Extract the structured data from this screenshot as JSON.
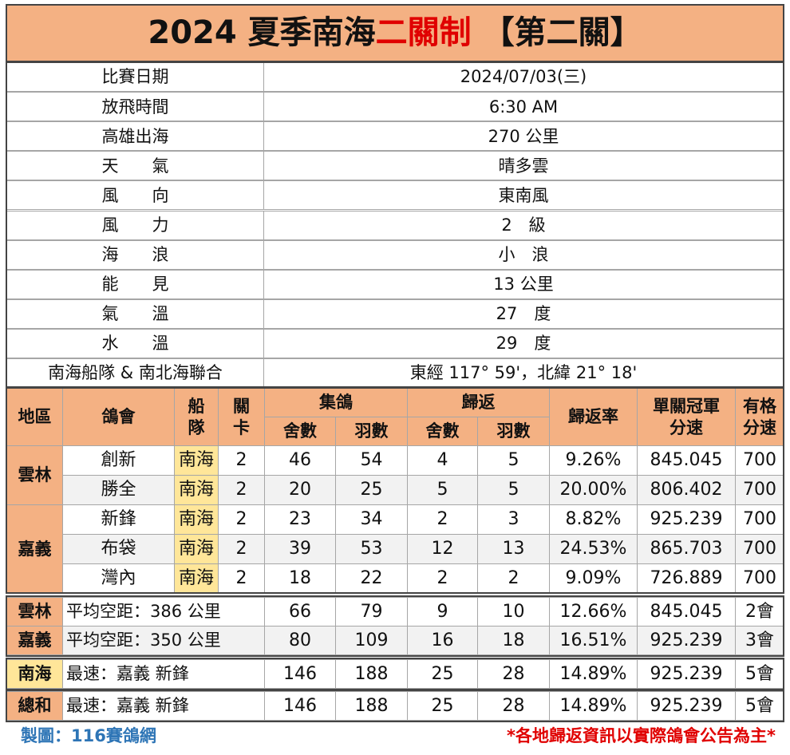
{
  "title": {
    "lead": "2024 夏季南海",
    "highlight": "二關制",
    "stage": "【第二關】"
  },
  "info": [
    [
      "比賽日期",
      "2024/07/03(三)"
    ],
    [
      "放飛時間",
      "6:30 AM"
    ],
    [
      "高雄出海",
      "270 公里"
    ],
    [
      "天　　氣",
      "晴多雲"
    ],
    [
      "風　　向",
      "東南風"
    ],
    [
      "風　　力",
      "2　級"
    ],
    [
      "海　　浪",
      "小　浪"
    ],
    [
      "能　　見",
      "13 公里"
    ],
    [
      "氣　　溫",
      "27　度"
    ],
    [
      "水　　溫",
      "29　度"
    ],
    [
      "南海船隊 & 南北海聯合",
      "東經 117°  59'，北緯 21°  18'"
    ]
  ],
  "table": {
    "headers": {
      "region": "地區",
      "club": "鴿會",
      "team": "船隊",
      "stage": "關卡",
      "collect": "集鴿",
      "returned": "歸返",
      "lofts": "舍數",
      "birds": "羽數",
      "ret_lofts": "舍數",
      "ret_birds": "羽數",
      "rate": "歸返率",
      "speed": "單關冠軍分速",
      "qual": "有格分速"
    },
    "regions": [
      {
        "name": "雲林",
        "clubs": [
          [
            "創新",
            "南海",
            "2",
            "46",
            "54",
            "4",
            "5",
            "9.26%",
            "845.045",
            "700"
          ],
          [
            "勝全",
            "南海",
            "2",
            "20",
            "25",
            "5",
            "5",
            "20.00%",
            "806.402",
            "700"
          ]
        ]
      },
      {
        "name": "嘉義",
        "clubs": [
          [
            "新鋒",
            "南海",
            "2",
            "23",
            "34",
            "2",
            "3",
            "8.82%",
            "925.239",
            "700"
          ],
          [
            "布袋",
            "南海",
            "2",
            "39",
            "53",
            "12",
            "13",
            "24.53%",
            "865.703",
            "700"
          ],
          [
            "灣內",
            "南海",
            "2",
            "18",
            "22",
            "2",
            "2",
            "9.09%",
            "726.889",
            "700"
          ]
        ]
      }
    ],
    "summary": [
      [
        "雲林",
        "平均空距：386 公里",
        "66",
        "79",
        "9",
        "10",
        "12.66%",
        "845.045",
        "2會"
      ],
      [
        "嘉義",
        "平均空距：350 公里",
        "80",
        "109",
        "16",
        "18",
        "16.51%",
        "925.239",
        "3會"
      ]
    ],
    "totals": [
      [
        "南海",
        "最速：嘉義 新鋒",
        "146",
        "188",
        "25",
        "28",
        "14.89%",
        "925.239",
        "5會"
      ],
      [
        "總和",
        "最速：嘉義 新鋒",
        "146",
        "188",
        "25",
        "28",
        "14.89%",
        "925.239",
        "5會"
      ]
    ]
  },
  "footer": {
    "credit": "製圖：116賽鴿網",
    "note": "*各地歸返資訊以實際鴿會公告為主*"
  }
}
